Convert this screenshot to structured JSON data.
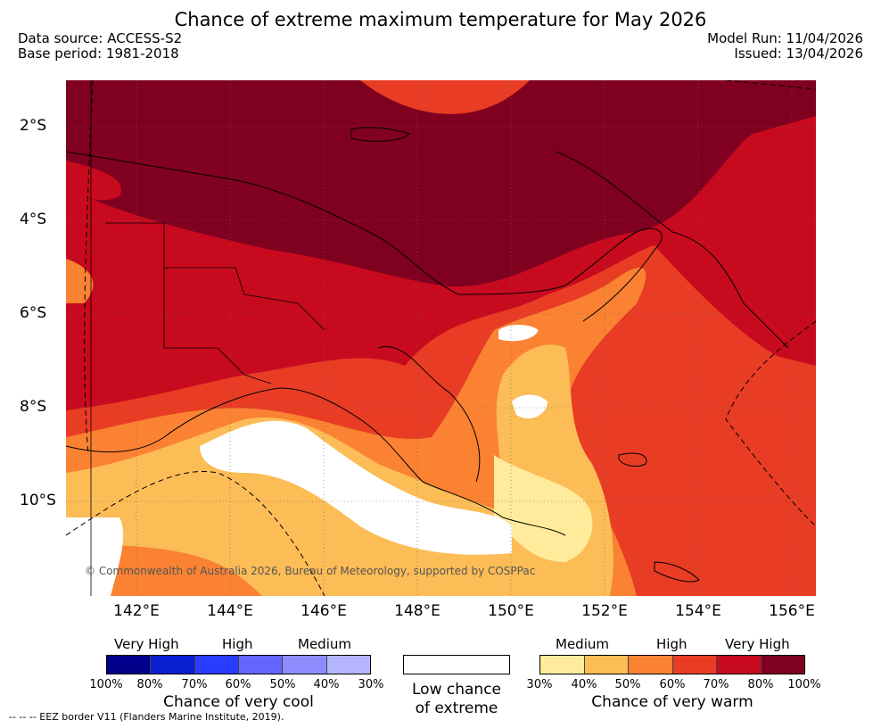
{
  "title": "Chance of extreme maximum temperature for May 2026",
  "data_source": "Data source: ACCESS-S2",
  "base_period": "Base period: 1981-2018",
  "model_run": "Model Run: 11/04/2026",
  "issued": "Issued: 13/04/2026",
  "lat_labels": [
    "2°S",
    "4°S",
    "6°S",
    "8°S",
    "10°S"
  ],
  "lon_labels": [
    "142°E",
    "144°E",
    "146°E",
    "148°E",
    "150°E",
    "152°E",
    "154°E",
    "156°E"
  ],
  "copyright": "© Commonwealth of Australia 2026, Bureau of Meteorology, supported by COSPPac",
  "legend": {
    "cool": {
      "levels": [
        "Very High",
        "High",
        "Medium"
      ],
      "colors": [
        "#00008b",
        "#0a1ed2",
        "#2a3cff",
        "#6464ff",
        "#8c8cff",
        "#b4b4ff"
      ],
      "ticks": [
        "100%",
        "80%",
        "70%",
        "60%",
        "50%",
        "40%",
        "30%"
      ],
      "caption": "Chance of very cool"
    },
    "low": {
      "caption_line1": "Low chance",
      "caption_line2": "of extreme"
    },
    "warm": {
      "levels": [
        "Medium",
        "High",
        "Very High"
      ],
      "colors": [
        "#ffeb9b",
        "#fcbc56",
        "#fa8232",
        "#e83c24",
        "#c80a1e",
        "#800020"
      ],
      "ticks": [
        "30%",
        "40%",
        "50%",
        "60%",
        "70%",
        "80%",
        "100%"
      ],
      "caption": "Chance of very warm"
    }
  },
  "eez_note": "--  --  -- EEZ border V11 (Flanders Marine Institute, 2019)."
}
